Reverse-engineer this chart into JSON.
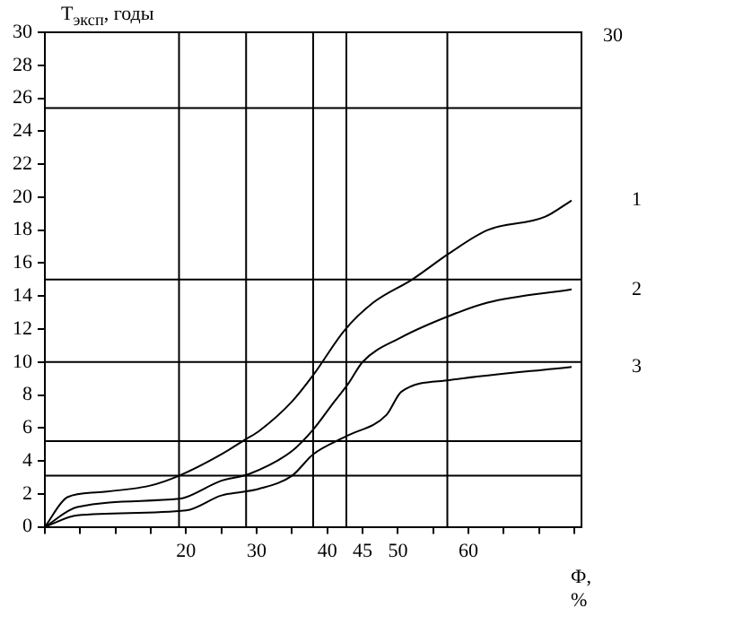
{
  "chart_data": {
    "type": "line",
    "ylabel": "T$_{эксп}$, годы",
    "xlabel": "Ф, %",
    "annotations": [
      "30"
    ],
    "xlim": [
      0,
      76
    ],
    "xticks": [
      {
        "value": 0,
        "label": null
      },
      {
        "value": 5,
        "label": null
      },
      {
        "value": 10,
        "label": null
      },
      {
        "value": 15,
        "label": null
      },
      20,
      {
        "value": 25,
        "label": null
      },
      30,
      {
        "value": 35,
        "label": null
      },
      40,
      45,
      50,
      {
        "value": 55,
        "label": null
      },
      60,
      {
        "value": 65,
        "label": null
      },
      {
        "value": 70,
        "label": null
      },
      {
        "value": 75,
        "label": null
      }
    ],
    "ylim": [
      0,
      30
    ],
    "yticks": [
      0,
      2,
      4,
      6,
      8,
      10,
      12,
      14,
      16,
      18,
      20,
      22,
      24,
      26,
      28,
      30
    ],
    "grid": false,
    "marker": "none",
    "line_style": "solid",
    "ref_lines": [
      {
        "axis": "x",
        "value": 19
      },
      {
        "axis": "x",
        "value": 28.5
      },
      {
        "axis": "x",
        "value": 38
      },
      {
        "axis": "x",
        "value": 42.7
      },
      {
        "axis": "x",
        "value": 57
      },
      {
        "axis": "y",
        "value": 25.4
      },
      {
        "axis": "y",
        "value": 15
      },
      {
        "axis": "y",
        "value": 10
      },
      {
        "axis": "y",
        "value": 5.2
      },
      {
        "axis": "y",
        "value": 3.1
      }
    ],
    "series": [
      {
        "name": "1",
        "color": "#000000",
        "x": [
          0,
          3.2,
          7.6,
          14.9,
          19,
          25,
          28.4,
          30.3,
          35,
          38,
          42.4,
          46.5,
          52,
          57.3,
          62.7,
          70.8,
          74.6
        ],
        "values": [
          0,
          1.8,
          2.1,
          2.5,
          3.1,
          4.4,
          5.3,
          5.8,
          7.6,
          9.2,
          11.9,
          13.6,
          15,
          16.6,
          18,
          18.8,
          19.8
        ]
      },
      {
        "name": "2",
        "color": "#000000",
        "x": [
          0,
          4.6,
          19,
          20,
          25,
          28.9,
          35,
          38,
          41,
          43,
          45,
          50.5,
          57.3,
          62.7,
          74.6
        ],
        "values": [
          0,
          1.2,
          1.7,
          1.8,
          2.8,
          3.2,
          4.6,
          5.9,
          7.6,
          8.7,
          10,
          11.5,
          12.8,
          13.6,
          14.4
        ]
      },
      {
        "name": "3",
        "color": "#000000",
        "x": [
          0,
          4.6,
          20,
          25,
          30.3,
          35,
          38,
          42.7,
          48.4,
          50.5,
          57.3,
          74.6
        ],
        "values": [
          0,
          0.7,
          1,
          1.9,
          2.3,
          3.1,
          4.4,
          5.5,
          6.8,
          8.2,
          8.9,
          9.7
        ]
      }
    ]
  }
}
